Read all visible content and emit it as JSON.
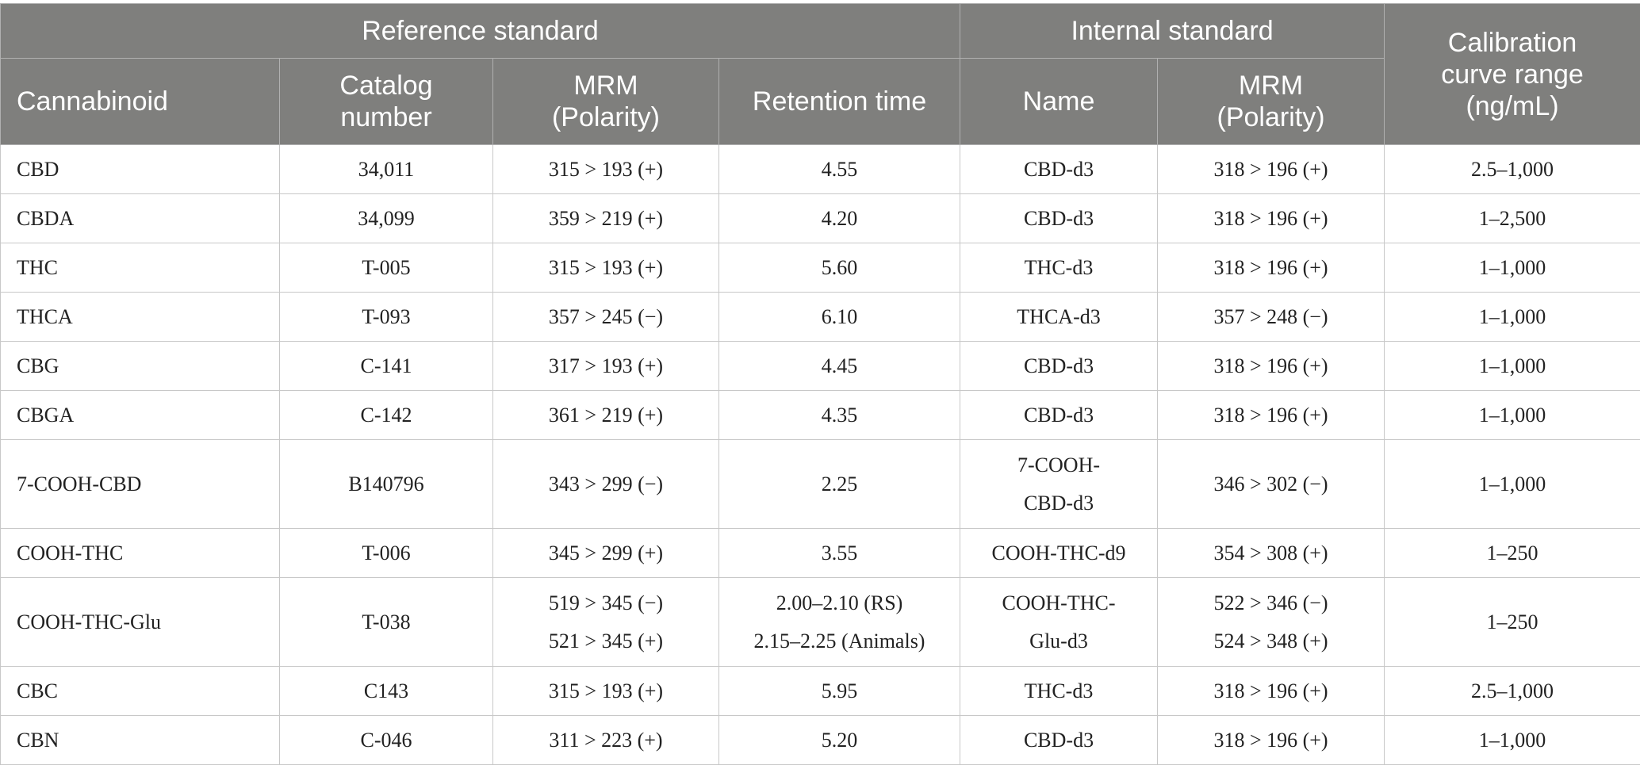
{
  "table": {
    "group_headers": [
      "Reference standard",
      "Internal standard"
    ],
    "last_header": [
      "Calibration",
      "curve range",
      "(ng/mL)"
    ],
    "columns": [
      [
        "Cannabinoid"
      ],
      [
        "Catalog",
        "number"
      ],
      [
        "MRM",
        "(Polarity)"
      ],
      [
        "Retention time"
      ],
      [
        "Name"
      ],
      [
        "MRM",
        "(Polarity)"
      ]
    ],
    "rows": [
      [
        [
          "CBD"
        ],
        [
          "34,011"
        ],
        [
          "315 > 193 (+)"
        ],
        [
          "4.55"
        ],
        [
          "CBD-d3"
        ],
        [
          "318 > 196 (+)"
        ],
        [
          "2.5–1,000"
        ]
      ],
      [
        [
          "CBDA"
        ],
        [
          "34,099"
        ],
        [
          "359 > 219 (+)"
        ],
        [
          "4.20"
        ],
        [
          "CBD-d3"
        ],
        [
          "318 > 196 (+)"
        ],
        [
          "1–2,500"
        ]
      ],
      [
        [
          "THC"
        ],
        [
          "T-005"
        ],
        [
          "315 > 193 (+)"
        ],
        [
          "5.60"
        ],
        [
          "THC-d3"
        ],
        [
          "318 > 196 (+)"
        ],
        [
          "1–1,000"
        ]
      ],
      [
        [
          "THCA"
        ],
        [
          "T-093"
        ],
        [
          "357 > 245 (−)"
        ],
        [
          "6.10"
        ],
        [
          "THCA-d3"
        ],
        [
          "357 > 248 (−)"
        ],
        [
          "1–1,000"
        ]
      ],
      [
        [
          "CBG"
        ],
        [
          "C-141"
        ],
        [
          "317 > 193 (+)"
        ],
        [
          "4.45"
        ],
        [
          "CBD-d3"
        ],
        [
          "318 > 196 (+)"
        ],
        [
          "1–1,000"
        ]
      ],
      [
        [
          "CBGA"
        ],
        [
          "C-142"
        ],
        [
          "361 > 219 (+)"
        ],
        [
          "4.35"
        ],
        [
          "CBD-d3"
        ],
        [
          "318 > 196 (+)"
        ],
        [
          "1–1,000"
        ]
      ],
      [
        [
          "7-COOH-CBD"
        ],
        [
          "B140796"
        ],
        [
          "343 > 299 (−)"
        ],
        [
          "2.25"
        ],
        [
          "7-COOH-",
          "CBD-d3"
        ],
        [
          "346 > 302 (−)"
        ],
        [
          "1–1,000"
        ]
      ],
      [
        [
          "COOH-THC"
        ],
        [
          "T-006"
        ],
        [
          "345 > 299 (+)"
        ],
        [
          "3.55"
        ],
        [
          "COOH-THC-d9"
        ],
        [
          "354 > 308 (+)"
        ],
        [
          "1–250"
        ]
      ],
      [
        [
          "COOH-THC-Glu"
        ],
        [
          "T-038"
        ],
        [
          "519 > 345 (−)",
          "521 > 345 (+)"
        ],
        [
          "2.00–2.10 (RS)",
          "2.15–2.25 (Animals)"
        ],
        [
          "COOH-THC-",
          "Glu-d3"
        ],
        [
          "522 > 346 (−)",
          "524 > 348 (+)"
        ],
        [
          "1–250"
        ]
      ],
      [
        [
          "CBC"
        ],
        [
          "C143"
        ],
        [
          "315 > 193 (+)"
        ],
        [
          "5.95"
        ],
        [
          "THC-d3"
        ],
        [
          "318 > 196 (+)"
        ],
        [
          "2.5–1,000"
        ]
      ],
      [
        [
          "CBN"
        ],
        [
          "C-046"
        ],
        [
          "311 > 223 (+)"
        ],
        [
          "5.20"
        ],
        [
          "CBD-d3"
        ],
        [
          "318 > 196 (+)"
        ],
        [
          "1–1,000"
        ]
      ]
    ]
  }
}
